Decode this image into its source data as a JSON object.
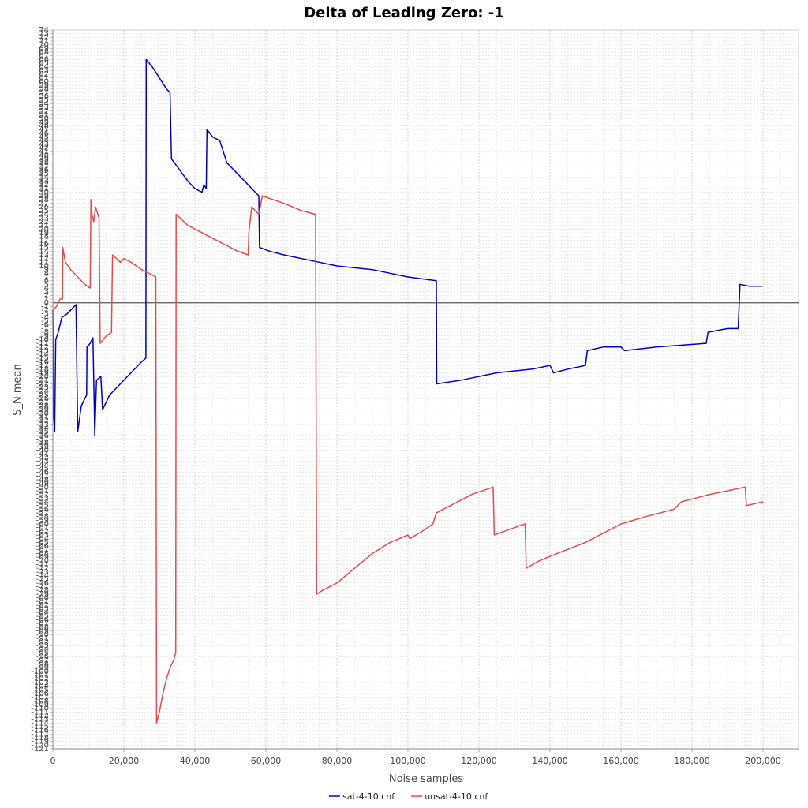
{
  "chart_data": {
    "type": "line",
    "title": "Delta of Leading Zero: -1",
    "xlabel": "Noise samples",
    "ylabel": "S_N mean",
    "xlim": [
      0,
      210000
    ],
    "ylim": [
      -121,
      74
    ],
    "x_ticks": [
      0,
      20000,
      40000,
      60000,
      80000,
      100000,
      120000,
      140000,
      160000,
      180000,
      200000
    ],
    "x_tick_labels": [
      "0",
      "20,000",
      "40,000",
      "60,000",
      "80,000",
      "100,000",
      "120,000",
      "140,000",
      "160,000",
      "180,000",
      "200,000"
    ],
    "y_tick_step": 1,
    "grid": true,
    "legend_position": "bottom-center",
    "zero_line": true,
    "series": [
      {
        "name": "sat-4-10.cnf",
        "color": "#0000cc",
        "points": [
          [
            0,
            -2
          ],
          [
            200,
            -30
          ],
          [
            500,
            -35
          ],
          [
            800,
            -10
          ],
          [
            1500,
            -8
          ],
          [
            2500,
            -4
          ],
          [
            4000,
            -3
          ],
          [
            5500,
            -1.5
          ],
          [
            6500,
            -0.5
          ],
          [
            7000,
            -35
          ],
          [
            8000,
            -28
          ],
          [
            9500,
            -25
          ],
          [
            9600,
            -12
          ],
          [
            10500,
            -11
          ],
          [
            11000,
            -10
          ],
          [
            11300,
            -9.5
          ],
          [
            11800,
            -36
          ],
          [
            12300,
            -21
          ],
          [
            13500,
            -20
          ],
          [
            14000,
            -29
          ],
          [
            16000,
            -25
          ],
          [
            19000,
            -22
          ],
          [
            22000,
            -19
          ],
          [
            25000,
            -16
          ],
          [
            26200,
            -15
          ],
          [
            26300,
            66
          ],
          [
            28000,
            64
          ],
          [
            30000,
            61
          ],
          [
            32000,
            58
          ],
          [
            33000,
            57
          ],
          [
            33400,
            39
          ],
          [
            35000,
            37
          ],
          [
            38000,
            33
          ],
          [
            40000,
            31
          ],
          [
            42000,
            30
          ],
          [
            42500,
            32
          ],
          [
            43200,
            31
          ],
          [
            43400,
            47
          ],
          [
            45000,
            45
          ],
          [
            47000,
            44
          ],
          [
            48000,
            41
          ],
          [
            49000,
            38
          ],
          [
            50000,
            37
          ],
          [
            52000,
            35
          ],
          [
            55000,
            32
          ],
          [
            57000,
            30
          ],
          [
            58000,
            29
          ],
          [
            58200,
            15
          ],
          [
            61000,
            14
          ],
          [
            65000,
            13
          ],
          [
            70000,
            12
          ],
          [
            75000,
            11
          ],
          [
            80000,
            10
          ],
          [
            90000,
            9
          ],
          [
            100000,
            7
          ],
          [
            108000,
            6
          ],
          [
            108100,
            -22
          ],
          [
            115000,
            -21
          ],
          [
            125000,
            -19
          ],
          [
            135000,
            -18
          ],
          [
            140000,
            -17
          ],
          [
            141000,
            -19
          ],
          [
            145000,
            -18
          ],
          [
            150000,
            -17
          ],
          [
            150500,
            -13
          ],
          [
            155000,
            -12
          ],
          [
            160000,
            -12
          ],
          [
            161000,
            -13
          ],
          [
            170000,
            -12
          ],
          [
            184000,
            -11
          ],
          [
            184500,
            -8
          ],
          [
            190000,
            -7
          ],
          [
            193000,
            -7
          ],
          [
            193500,
            5
          ],
          [
            196000,
            4.5
          ],
          [
            200000,
            4.5
          ]
        ]
      },
      {
        "name": "unsat-4-10.cnf",
        "color": "#e84a4a",
        "points": [
          [
            0,
            -2
          ],
          [
            1000,
            -1
          ],
          [
            2000,
            1
          ],
          [
            2700,
            1
          ],
          [
            2800,
            15
          ],
          [
            3500,
            11
          ],
          [
            5000,
            9
          ],
          [
            7000,
            7
          ],
          [
            9000,
            5
          ],
          [
            10500,
            4
          ],
          [
            10700,
            28
          ],
          [
            11000,
            24
          ],
          [
            11500,
            22
          ],
          [
            12000,
            26
          ],
          [
            13000,
            23
          ],
          [
            13300,
            -11
          ],
          [
            15000,
            -9
          ],
          [
            16500,
            -8
          ],
          [
            16800,
            13
          ],
          [
            19000,
            11
          ],
          [
            20000,
            12
          ],
          [
            22000,
            11
          ],
          [
            25000,
            9
          ],
          [
            27000,
            8
          ],
          [
            29000,
            7
          ],
          [
            29200,
            -114
          ],
          [
            30000,
            -111
          ],
          [
            31000,
            -106
          ],
          [
            32000,
            -102
          ],
          [
            33000,
            -99
          ],
          [
            34000,
            -97
          ],
          [
            34600,
            -95
          ],
          [
            34700,
            24
          ],
          [
            38000,
            21
          ],
          [
            42000,
            19
          ],
          [
            46000,
            17
          ],
          [
            48000,
            16
          ],
          [
            50000,
            15
          ],
          [
            52000,
            14
          ],
          [
            55000,
            13
          ],
          [
            55200,
            19
          ],
          [
            56000,
            26
          ],
          [
            58000,
            24
          ],
          [
            59000,
            29
          ],
          [
            62000,
            28
          ],
          [
            65000,
            27
          ],
          [
            70000,
            25
          ],
          [
            74000,
            24
          ],
          [
            74300,
            -79
          ],
          [
            76000,
            -78
          ],
          [
            80000,
            -76
          ],
          [
            85000,
            -72
          ],
          [
            90000,
            -68
          ],
          [
            95000,
            -65
          ],
          [
            100000,
            -63
          ],
          [
            100500,
            -64
          ],
          [
            104000,
            -62
          ],
          [
            107000,
            -60
          ],
          [
            108000,
            -57
          ],
          [
            112000,
            -55
          ],
          [
            118000,
            -52
          ],
          [
            124000,
            -50
          ],
          [
            124300,
            -63
          ],
          [
            130000,
            -61
          ],
          [
            133000,
            -60
          ],
          [
            133300,
            -72
          ],
          [
            137000,
            -70
          ],
          [
            142000,
            -68
          ],
          [
            150000,
            -65
          ],
          [
            156000,
            -62
          ],
          [
            160000,
            -60
          ],
          [
            167000,
            -58
          ],
          [
            175000,
            -56
          ],
          [
            177000,
            -54
          ],
          [
            181000,
            -53
          ],
          [
            185000,
            -52
          ],
          [
            195000,
            -50
          ],
          [
            195300,
            -55
          ],
          [
            200000,
            -54
          ]
        ]
      }
    ]
  }
}
